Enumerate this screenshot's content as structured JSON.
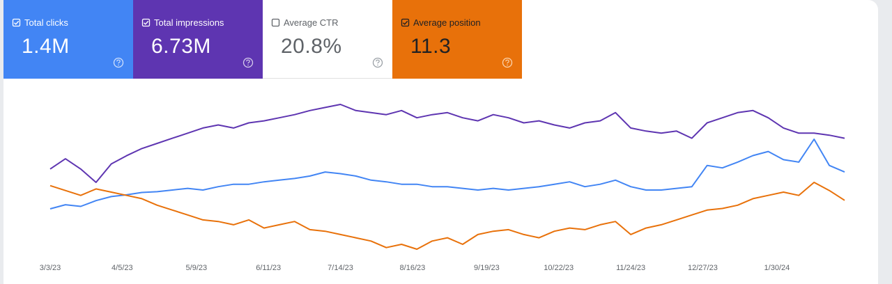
{
  "metrics": [
    {
      "label": "Total clicks",
      "value": "1.4M",
      "checked": true,
      "color": "#4285f4"
    },
    {
      "label": "Total impressions",
      "value": "6.73M",
      "checked": true,
      "color": "#5e35b1"
    },
    {
      "label": "Average CTR",
      "value": "20.8%",
      "checked": false,
      "color": "#ffffff"
    },
    {
      "label": "Average position",
      "value": "11.3",
      "checked": true,
      "color": "#e8710a"
    }
  ],
  "chart_data": {
    "type": "line",
    "x": [
      "3/3/23",
      "3/10/23",
      "3/17/23",
      "3/24/23",
      "3/31/23",
      "4/7/23",
      "4/14/23",
      "4/21/23",
      "4/28/23",
      "5/5/23",
      "5/12/23",
      "5/19/23",
      "5/26/23",
      "6/2/23",
      "6/9/23",
      "6/16/23",
      "6/23/23",
      "6/30/23",
      "7/7/23",
      "7/14/23",
      "7/21/23",
      "7/28/23",
      "8/4/23",
      "8/11/23",
      "8/18/23",
      "8/25/23",
      "9/1/23",
      "9/8/23",
      "9/15/23",
      "9/22/23",
      "9/29/23",
      "10/6/23",
      "10/13/23",
      "10/20/23",
      "10/27/23",
      "11/3/23",
      "11/10/23",
      "11/17/23",
      "11/24/23",
      "12/1/23",
      "12/8/23",
      "12/15/23",
      "12/22/23",
      "12/29/23",
      "1/5/24",
      "1/12/24",
      "1/19/24",
      "1/26/24",
      "2/2/24",
      "2/9/24",
      "2/16/24",
      "2/23/24",
      "3/1/24"
    ],
    "xticks": [
      "3/3/23",
      "4/5/23",
      "5/9/23",
      "6/11/23",
      "7/14/23",
      "8/16/23",
      "9/19/23",
      "10/22/23",
      "11/24/23",
      "12/27/23",
      "1/30/24"
    ],
    "series": [
      {
        "name": "Total impressions",
        "color": "#5e35b1",
        "values": [
          15500,
          16500,
          15500,
          14200,
          16000,
          16800,
          17500,
          18000,
          18500,
          19000,
          19500,
          19800,
          19500,
          20000,
          20200,
          20500,
          20800,
          21200,
          21500,
          21800,
          21200,
          21000,
          20800,
          21200,
          20500,
          20800,
          21000,
          20500,
          20200,
          20800,
          20500,
          20000,
          20200,
          19800,
          19500,
          20000,
          20200,
          21000,
          19500,
          19200,
          19000,
          19200,
          18500,
          20000,
          20500,
          21000,
          21200,
          20500,
          19500,
          19000,
          19000,
          18800,
          18500
        ]
      },
      {
        "name": "Total clicks",
        "color": "#4285f4",
        "values": [
          2800,
          2970,
          2900,
          3140,
          3310,
          3380,
          3480,
          3510,
          3580,
          3650,
          3580,
          3720,
          3820,
          3820,
          3920,
          3990,
          4060,
          4160,
          4330,
          4260,
          4160,
          3990,
          3920,
          3820,
          3820,
          3720,
          3720,
          3650,
          3580,
          3650,
          3580,
          3650,
          3720,
          3820,
          3920,
          3720,
          3820,
          3990,
          3720,
          3580,
          3580,
          3650,
          3720,
          4600,
          4500,
          4740,
          5010,
          5180,
          4840,
          4740,
          5690,
          4600,
          4330
        ]
      },
      {
        "name": "Average position",
        "color": "#e8710a",
        "inverted": true,
        "values": [
          9.2,
          9.5,
          9.8,
          9.4,
          9.6,
          9.8,
          10.0,
          10.4,
          10.7,
          11.0,
          11.3,
          11.4,
          11.6,
          11.3,
          11.8,
          11.6,
          11.4,
          11.9,
          12.0,
          12.2,
          12.4,
          12.6,
          13.0,
          12.8,
          13.1,
          12.6,
          12.4,
          12.8,
          12.2,
          12.0,
          11.9,
          12.2,
          12.4,
          12.0,
          11.8,
          11.9,
          11.6,
          11.4,
          12.2,
          11.8,
          11.6,
          11.3,
          11.0,
          10.7,
          10.6,
          10.4,
          10.0,
          9.8,
          9.6,
          9.8,
          9.0,
          9.5,
          10.1
        ]
      }
    ]
  }
}
